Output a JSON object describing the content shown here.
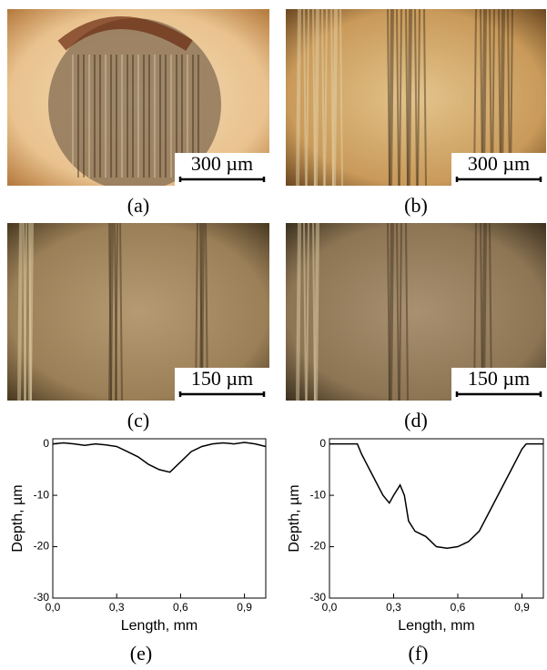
{
  "panels": [
    {
      "caption": "(a)",
      "scale_bar": "300 µm"
    },
    {
      "caption": "(b)",
      "scale_bar": "300 µm"
    },
    {
      "caption": "(c)",
      "scale_bar": "150 µm"
    },
    {
      "caption": "(d)",
      "scale_bar": "150 µm"
    }
  ],
  "chart_data": [
    {
      "type": "line",
      "caption": "(e)",
      "x_label": "Length, mm",
      "y_label": "Depth, µm",
      "color": "#000000",
      "x": [
        0,
        0.05,
        0.1,
        0.15,
        0.2,
        0.25,
        0.3,
        0.35,
        0.4,
        0.45,
        0.5,
        0.55,
        0.6,
        0.65,
        0.7,
        0.75,
        0.8,
        0.85,
        0.9,
        0.95,
        1.0
      ],
      "values": [
        0,
        0.2,
        0,
        -0.3,
        0,
        -0.2,
        -0.5,
        -1.5,
        -2.5,
        -4,
        -5,
        -5.5,
        -3.5,
        -1.5,
        -0.5,
        0,
        0.2,
        0,
        0.3,
        0,
        -0.5
      ],
      "xlim": [
        0,
        1
      ],
      "ylim": [
        -30,
        1
      ],
      "xticks": [
        {
          "value": 0,
          "label": "0,0"
        },
        {
          "value": 0.3,
          "label": "0,3"
        },
        {
          "value": 0.6,
          "label": "0,6"
        },
        {
          "value": 0.9,
          "label": "0,9"
        }
      ],
      "yticks": [
        0,
        -10,
        -20,
        -30
      ]
    },
    {
      "type": "line",
      "caption": "(f)",
      "x_label": "Length, mm",
      "y_label": "Depth, µm",
      "color": "#000000",
      "x": [
        0,
        0.05,
        0.1,
        0.13,
        0.15,
        0.2,
        0.25,
        0.28,
        0.3,
        0.33,
        0.35,
        0.37,
        0.4,
        0.45,
        0.5,
        0.55,
        0.6,
        0.65,
        0.7,
        0.75,
        0.8,
        0.85,
        0.9,
        0.92,
        0.95,
        1.0
      ],
      "values": [
        0,
        0,
        0,
        0,
        -2,
        -6,
        -10,
        -11.5,
        -10,
        -8,
        -10,
        -15,
        -17,
        -18,
        -20,
        -20.3,
        -20,
        -19,
        -17,
        -13,
        -9,
        -5,
        -1,
        0,
        0,
        0
      ],
      "xlim": [
        0,
        1
      ],
      "ylim": [
        -30,
        1
      ],
      "xticks": [
        {
          "value": 0,
          "label": "0,0"
        },
        {
          "value": 0.3,
          "label": "0,3"
        },
        {
          "value": 0.6,
          "label": "0,6"
        },
        {
          "value": 0.9,
          "label": "0,9"
        }
      ],
      "yticks": [
        0,
        -10,
        -20,
        -30
      ]
    }
  ]
}
